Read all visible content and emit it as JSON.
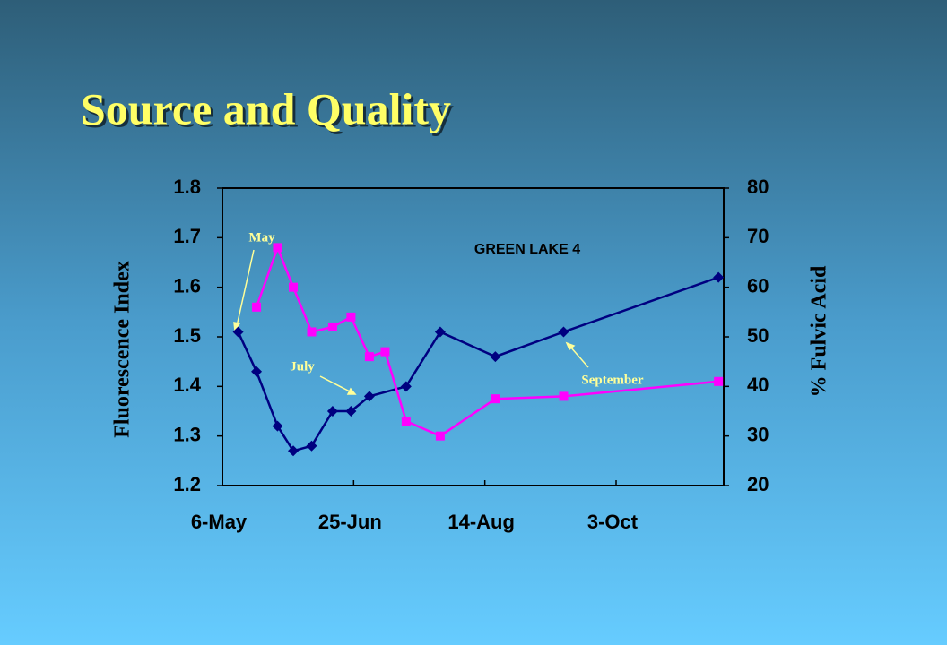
{
  "chart_data": {
    "type": "line",
    "title": "Source and Quality",
    "subtitle": "GREEN LAKE 4",
    "y_label": "Fluorescence Index",
    "y2_label": "% Fulvic Acid",
    "xlim": [
      "6-May",
      "13-Nov"
    ],
    "xticks": [
      "6-May",
      "25-Jun",
      "14-Aug",
      "3-Oct"
    ],
    "ylim": [
      1.2,
      1.8
    ],
    "yticks": [
      1.2,
      1.3,
      1.4,
      1.5,
      1.6,
      1.7,
      1.8
    ],
    "y2lim": [
      20,
      80
    ],
    "y2ticks": [
      20,
      30,
      40,
      50,
      60,
      70,
      80
    ],
    "series": [
      {
        "name": "Fluorescence Index",
        "color": "#000080",
        "x": [
          "12-May",
          "19-May",
          "27-May",
          "2-Jun",
          "9-Jun",
          "17-Jun",
          "24-Jun",
          "1-Jul",
          "15-Jul",
          "28-Jul",
          "18-Aug",
          "13-Sep",
          "11-Nov"
        ],
        "values": [
          1.51,
          1.43,
          1.32,
          1.27,
          1.28,
          1.35,
          1.35,
          1.38,
          1.4,
          1.51,
          1.46,
          1.51,
          1.62
        ]
      },
      {
        "name": "% Fulvic Acid",
        "color": "#ff00ff",
        "axis": "y2",
        "x": [
          "19-May",
          "27-May",
          "2-Jun",
          "9-Jun",
          "17-Jun",
          "24-Jun",
          "1-Jul",
          "7-Jul",
          "15-Jul",
          "28-Jul",
          "18-Aug",
          "13-Sep",
          "11-Nov"
        ],
        "values": [
          56,
          68,
          60,
          51,
          52,
          54,
          46,
          47,
          33,
          30,
          37.5,
          38,
          41
        ]
      }
    ],
    "annotations": [
      "May",
      "July",
      "September"
    ]
  }
}
